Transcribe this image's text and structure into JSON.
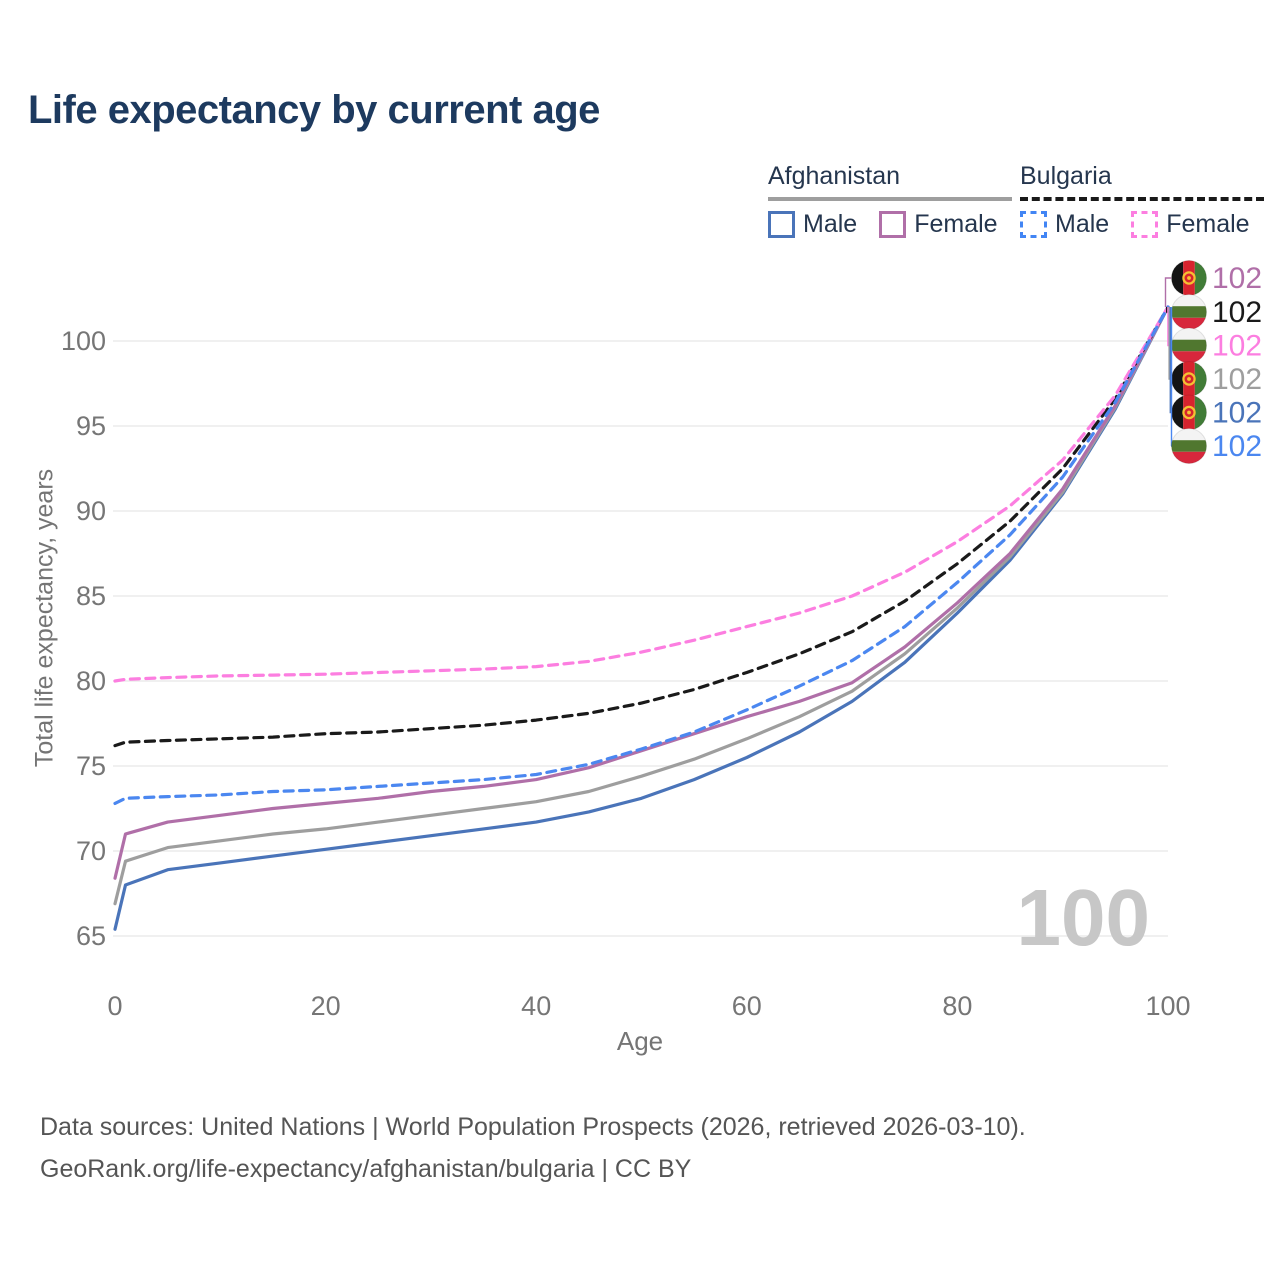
{
  "title": "Life expectancy by current age",
  "legend": {
    "groups": [
      {
        "country": "Afghanistan",
        "line_style": "solid",
        "underline_color": "#9e9e9e",
        "items": [
          {
            "label": "Male",
            "color": "#4a74b9"
          },
          {
            "label": "Female",
            "color": "#b06fa8"
          }
        ]
      },
      {
        "country": "Bulgaria",
        "line_style": "dashed",
        "underline_color": "#1a1a1a",
        "items": [
          {
            "label": "Male",
            "color": "#4285f4"
          },
          {
            "label": "Female",
            "color": "#fc7ee0"
          }
        ]
      }
    ]
  },
  "chart_data": {
    "type": "line",
    "title": "Life expectancy by current age",
    "xlabel": "Age",
    "ylabel": "Total life expectancy, years",
    "xlim": [
      0,
      100
    ],
    "ylim": [
      63.5,
      103.5
    ],
    "x_ticks": [
      0,
      20,
      40,
      60,
      80,
      100
    ],
    "y_ticks": [
      65,
      70,
      75,
      80,
      85,
      90,
      95,
      100
    ],
    "grid": "horizontal",
    "legend_position": "top-right",
    "watermark": "100",
    "x": [
      0,
      1,
      5,
      10,
      15,
      20,
      25,
      30,
      35,
      40,
      45,
      50,
      55,
      60,
      65,
      70,
      75,
      80,
      85,
      90,
      95,
      100
    ],
    "series": [
      {
        "name": "Afghanistan Male",
        "country": "Afghanistan",
        "sex": "Male",
        "color": "#4a74b9",
        "dash": false,
        "values": [
          65.4,
          68.0,
          68.9,
          69.3,
          69.7,
          70.1,
          70.5,
          70.9,
          71.3,
          71.7,
          72.3,
          73.1,
          74.2,
          75.5,
          77.0,
          78.8,
          81.1,
          84.0,
          87.1,
          91.0,
          96.0,
          102
        ]
      },
      {
        "name": "Afghanistan Female",
        "country": "Afghanistan",
        "sex": "Female",
        "color": "#b06fa8",
        "dash": false,
        "values": [
          68.4,
          71.0,
          71.7,
          72.1,
          72.5,
          72.8,
          73.1,
          73.5,
          73.8,
          74.2,
          74.9,
          75.9,
          76.9,
          77.9,
          78.8,
          79.9,
          82.0,
          84.6,
          87.5,
          91.3,
          96.2,
          102
        ]
      },
      {
        "name": "Afghanistan",
        "country": "Afghanistan",
        "sex": "Both",
        "color": "#9e9e9e",
        "dash": false,
        "values": [
          66.9,
          69.4,
          70.2,
          70.6,
          71.0,
          71.3,
          71.7,
          72.1,
          72.5,
          72.9,
          73.5,
          74.4,
          75.4,
          76.6,
          77.9,
          79.4,
          81.6,
          84.3,
          87.3,
          91.1,
          96.1,
          102
        ]
      },
      {
        "name": "Bulgaria Male",
        "country": "Bulgaria",
        "sex": "Male",
        "color": "#4b87f0",
        "dash": true,
        "values": [
          72.8,
          73.1,
          73.2,
          73.3,
          73.5,
          73.6,
          73.8,
          74.0,
          74.2,
          74.5,
          75.1,
          76.0,
          77.0,
          78.3,
          79.7,
          81.2,
          83.2,
          85.8,
          88.6,
          92.0,
          96.4,
          102
        ]
      },
      {
        "name": "Bulgaria Female",
        "country": "Bulgaria",
        "sex": "Female",
        "color": "#fc7ee0",
        "dash": true,
        "values": [
          80.0,
          80.1,
          80.2,
          80.3,
          80.35,
          80.4,
          80.5,
          80.6,
          80.7,
          80.85,
          81.15,
          81.7,
          82.4,
          83.2,
          84.0,
          85.0,
          86.4,
          88.2,
          90.3,
          93.0,
          96.8,
          102
        ]
      },
      {
        "name": "Bulgaria",
        "country": "Bulgaria",
        "sex": "Both",
        "color": "#1a1a1a",
        "dash": true,
        "values": [
          76.2,
          76.4,
          76.5,
          76.6,
          76.7,
          76.9,
          77.0,
          77.2,
          77.4,
          77.7,
          78.1,
          78.7,
          79.5,
          80.5,
          81.6,
          82.9,
          84.7,
          86.9,
          89.4,
          92.5,
          96.6,
          102
        ]
      }
    ],
    "end_labels": [
      {
        "value": "102",
        "series": "Afghanistan Female",
        "flag": "afghanistan",
        "color": "#b06fa8"
      },
      {
        "value": "102",
        "series": "Bulgaria",
        "flag": "bulgaria",
        "color": "#1a1a1a"
      },
      {
        "value": "102",
        "series": "Bulgaria Female",
        "flag": "bulgaria",
        "color": "#fc7ee0"
      },
      {
        "value": "102",
        "series": "Afghanistan",
        "flag": "afghanistan",
        "color": "#9e9e9e"
      },
      {
        "value": "102",
        "series": "Afghanistan Male",
        "flag": "afghanistan",
        "color": "#4a74b9"
      },
      {
        "value": "102",
        "series": "Bulgaria Male",
        "flag": "bulgaria",
        "color": "#4b87f0"
      }
    ]
  },
  "footer": {
    "line1": "Data sources: United Nations | World Population Prospects (2026, retrieved 2026-03-10).",
    "line2": "GeoRank.org/life-expectancy/afghanistan/bulgaria | CC BY"
  }
}
